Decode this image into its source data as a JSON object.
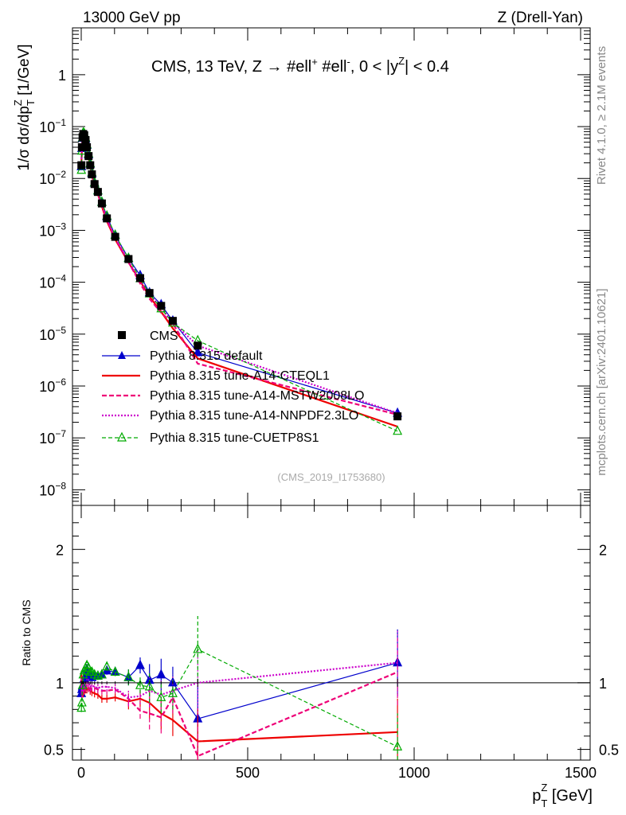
{
  "header": {
    "left": "13000 GeV pp",
    "right": "Z (Drell-Yan)"
  },
  "side": {
    "rivet": "Rivet 4.1.0, ≥ 2.1M events",
    "mcplots": "mcplots.cern.ch [arXiv:2401.10621]"
  },
  "chart_data": [
    {
      "id": "main",
      "type": "line",
      "title": "CMS, 13 TeV, Z → #ell⁺ #ell⁻, 0 < |y^Z| < 0.4",
      "title_parts": {
        "a": "CMS, 13 TeV, Z →  #ell",
        "b": "+",
        "c": " #ell",
        "d": "-",
        "e": ", 0 < |y",
        "f": "Z",
        "g": "| < 0.4"
      },
      "ylabel_parts": {
        "a": "1/σ dσ/dp",
        "b": "T",
        "c": "Z",
        "d": " [1/GeV]"
      },
      "yscale": "log",
      "xlim": [
        -40,
        1520
      ],
      "ylim": [
        5e-09,
        8
      ],
      "yticks": [
        {
          "v": 1e-08,
          "b": "10",
          "e": "−8"
        },
        {
          "v": 1e-07,
          "b": "10",
          "e": "−7"
        },
        {
          "v": 1e-06,
          "b": "10",
          "e": "−6"
        },
        {
          "v": 1e-05,
          "b": "10",
          "e": "−5"
        },
        {
          "v": 0.0001,
          "b": "10",
          "e": "−4"
        },
        {
          "v": 0.001,
          "b": "10",
          "e": "−3"
        },
        {
          "v": 0.01,
          "b": "10",
          "e": "−2"
        },
        {
          "v": 0.1,
          "b": "10",
          "e": "−1"
        },
        {
          "v": 1,
          "b": "1",
          "e": ""
        }
      ],
      "x": [
        0.5,
        2,
        4,
        6,
        9,
        13,
        17,
        22,
        27,
        32,
        40,
        50,
        62,
        77,
        102,
        142,
        177,
        205,
        240,
        275,
        350,
        950
      ],
      "data": {
        "name": "CMS",
        "values": [
          0.018,
          0.04,
          0.062,
          0.072,
          0.068,
          0.055,
          0.04,
          0.027,
          0.018,
          0.012,
          0.0078,
          0.0055,
          0.0033,
          0.0017,
          0.00075,
          0.00028,
          0.00012,
          6.2e-05,
          3.5e-05,
          1.8e-05,
          6e-06,
          2.6e-07
        ]
      },
      "series": [
        {
          "name": "Pythia 8.315 default",
          "color": "#0000cc",
          "style": "solid",
          "marker": "triangle-filled",
          "values": [
            0.017,
            0.038,
            0.06,
            0.07,
            0.07,
            0.058,
            0.044,
            0.029,
            0.019,
            0.0125,
            0.0082,
            0.0058,
            0.0035,
            0.00185,
            0.00081,
            0.00029,
            0.000135,
            6.3e-05,
            3.7e-05,
            1.8e-05,
            4.4e-06,
            3e-07
          ]
        },
        {
          "name": "Pythia 8.315 tune-A14-CTEQL1",
          "color": "#ee0000",
          "style": "solid",
          "marker": "none",
          "values": [
            0.019,
            0.037,
            0.058,
            0.066,
            0.064,
            0.052,
            0.038,
            0.026,
            0.017,
            0.0112,
            0.0072,
            0.005,
            0.0029,
            0.0015,
            0.00067,
            0.00024,
            0.000105,
            5.3e-05,
            2.7e-05,
            1.3e-05,
            3.4e-06,
            1.65e-07
          ]
        },
        {
          "name": "Pythia 8.315 tune-A14-MSTW2008LO",
          "color": "#ee0077",
          "style": "dashed",
          "marker": "none",
          "values": [
            0.018,
            0.036,
            0.057,
            0.068,
            0.065,
            0.053,
            0.039,
            0.026,
            0.017,
            0.0115,
            0.0075,
            0.0052,
            0.0031,
            0.0016,
            0.00071,
            0.000245,
            9.5e-05,
            4.8e-05,
            2.6e-05,
            1.6e-05,
            2.7e-06,
            2.8e-07
          ]
        },
        {
          "name": "Pythia 8.315 tune-A14-NNPDF2.3LO",
          "color": "#cc00cc",
          "style": "dotted",
          "marker": "none",
          "values": [
            0.018,
            0.037,
            0.058,
            0.069,
            0.066,
            0.054,
            0.04,
            0.027,
            0.0175,
            0.0117,
            0.0076,
            0.0053,
            0.0032,
            0.00165,
            0.00072,
            0.00025,
            0.000108,
            5.8e-05,
            3.2e-05,
            1.7e-05,
            6e-06,
            3e-07
          ]
        },
        {
          "name": "Pythia 8.315 tune-CUETP8S1",
          "color": "#00aa00",
          "style": "dashed",
          "marker": "triangle-open",
          "values": [
            0.0145,
            0.034,
            0.061,
            0.076,
            0.074,
            0.061,
            0.045,
            0.03,
            0.0195,
            0.013,
            0.0083,
            0.0058,
            0.0035,
            0.0019,
            0.00081,
            0.00029,
            0.000118,
            6e-05,
            3.1e-05,
            1.65e-05,
            7.5e-06,
            1.35e-07
          ]
        }
      ],
      "watermark": "(CMS_2019_I1753680)"
    },
    {
      "id": "ratio",
      "type": "line",
      "ylabel": "Ratio to CMS",
      "xlabel_parts": {
        "a": "p",
        "b": "T",
        "c": "Z",
        "d": " [GeV]"
      },
      "xlim": [
        -40,
        1520
      ],
      "ylim": [
        0.42,
        2.33
      ],
      "xticks": [
        0,
        500,
        1000,
        1500
      ],
      "yticks": [
        0.5,
        1,
        2
      ],
      "series_ratio": [
        [
          0.92,
          0.95,
          0.97,
          0.97,
          1.03,
          1.05,
          1.1,
          1.07,
          1.06,
          1.04,
          1.05,
          1.05,
          1.06,
          1.09,
          1.08,
          1.04,
          1.13,
          1.02,
          1.06,
          1.0,
          0.73,
          1.15
        ],
        [
          1.06,
          0.93,
          0.94,
          0.92,
          0.94,
          0.95,
          0.95,
          0.96,
          0.94,
          0.93,
          0.92,
          0.91,
          0.88,
          0.88,
          0.89,
          0.86,
          0.88,
          0.85,
          0.77,
          0.72,
          0.56,
          0.63
        ],
        [
          1.0,
          0.9,
          0.92,
          0.94,
          0.96,
          0.96,
          0.98,
          0.96,
          0.95,
          0.96,
          0.96,
          0.95,
          0.94,
          0.94,
          0.95,
          0.88,
          0.79,
          0.77,
          0.74,
          0.89,
          0.45,
          1.08
        ],
        [
          1.0,
          0.92,
          0.94,
          0.96,
          0.97,
          0.98,
          1.0,
          1.0,
          0.97,
          0.98,
          0.97,
          0.96,
          0.97,
          0.97,
          0.96,
          0.89,
          0.9,
          0.94,
          0.91,
          0.94,
          1.0,
          1.15
        ],
        [
          0.81,
          0.85,
          0.98,
          1.06,
          1.09,
          1.11,
          1.13,
          1.11,
          1.08,
          1.08,
          1.06,
          1.05,
          1.06,
          1.12,
          1.08,
          1.04,
          0.98,
          0.97,
          0.89,
          0.92,
          1.25,
          0.52
        ]
      ]
    }
  ]
}
